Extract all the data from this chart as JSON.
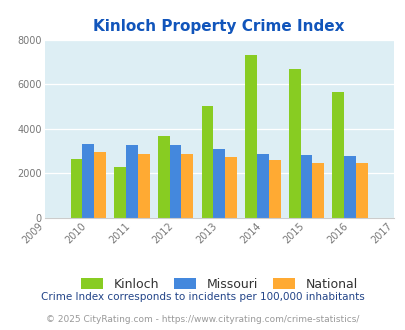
{
  "title": "Kinloch Property Crime Index",
  "years": [
    2009,
    2010,
    2011,
    2012,
    2013,
    2014,
    2015,
    2016,
    2017
  ],
  "bar_years": [
    2010,
    2011,
    2012,
    2013,
    2014,
    2015,
    2016
  ],
  "kinloch": [
    2620,
    2300,
    3650,
    5000,
    7330,
    6680,
    5650
  ],
  "missouri": [
    3320,
    3250,
    3260,
    3100,
    2880,
    2820,
    2760
  ],
  "national": [
    2950,
    2880,
    2880,
    2720,
    2590,
    2480,
    2450
  ],
  "kinloch_color": "#88cc22",
  "missouri_color": "#4488dd",
  "national_color": "#ffaa33",
  "bg_color": "#ddeef4",
  "ylim": [
    0,
    8000
  ],
  "yticks": [
    0,
    2000,
    4000,
    6000,
    8000
  ],
  "ytick_labels": [
    "0",
    "2000",
    "4000",
    "6000",
    "8000"
  ],
  "legend_labels": [
    "Kinloch",
    "Missouri",
    "National"
  ],
  "footnote1": "Crime Index corresponds to incidents per 100,000 inhabitants",
  "footnote2": "© 2025 CityRating.com - https://www.cityrating.com/crime-statistics/",
  "title_color": "#1155bb",
  "footnote1_color": "#224488",
  "footnote2_color": "#999999",
  "bar_width": 0.27
}
